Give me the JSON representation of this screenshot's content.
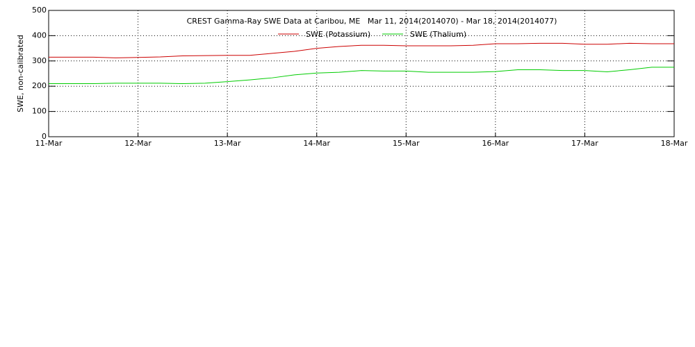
{
  "chart_data": {
    "type": "line",
    "title": "CREST Gamma-Ray SWE Data at Caribou, ME   Mar 11, 2014(2014070) - Mar 18, 2014(2014077)",
    "y_label": "SWE, non-calibrated",
    "x": [
      0,
      0.25,
      0.5,
      0.75,
      1,
      1.25,
      1.5,
      1.75,
      2,
      2.25,
      2.5,
      2.75,
      3,
      3.25,
      3.5,
      3.75,
      4,
      4.25,
      4.5,
      4.75,
      5,
      5.25,
      5.5,
      5.75,
      6,
      6.25,
      6.5,
      6.75,
      7
    ],
    "series": [
      {
        "name": "SWE (Potassium)",
        "color": "#cc0000",
        "values": [
          315,
          315,
          315,
          312,
          314,
          316,
          320,
          321,
          322,
          322,
          330,
          338,
          350,
          357,
          362,
          362,
          360,
          360,
          360,
          362,
          368,
          368,
          370,
          370,
          366,
          366,
          370,
          368,
          368
        ]
      },
      {
        "name": "SWE (Thalium)",
        "color": "#00cc00",
        "values": [
          210,
          210,
          210,
          212,
          212,
          212,
          210,
          212,
          218,
          225,
          233,
          245,
          252,
          255,
          262,
          260,
          260,
          255,
          255,
          255,
          258,
          265,
          265,
          262,
          262,
          257,
          265,
          275,
          275
        ]
      }
    ],
    "xlim": [
      0,
      7
    ],
    "xticks": [
      {
        "value": 0,
        "label": "11-Mar"
      },
      {
        "value": 1,
        "label": "12-Mar"
      },
      {
        "value": 2,
        "label": "13-Mar"
      },
      {
        "value": 3,
        "label": "14-Mar"
      },
      {
        "value": 4,
        "label": "15-Mar"
      },
      {
        "value": 5,
        "label": "16-Mar"
      },
      {
        "value": 6,
        "label": "17-Mar"
      },
      {
        "value": 7,
        "label": "18-Mar"
      }
    ],
    "ylim": [
      0,
      500
    ],
    "yticks": [
      0,
      100,
      200,
      300,
      400,
      500
    ],
    "grid": true
  }
}
